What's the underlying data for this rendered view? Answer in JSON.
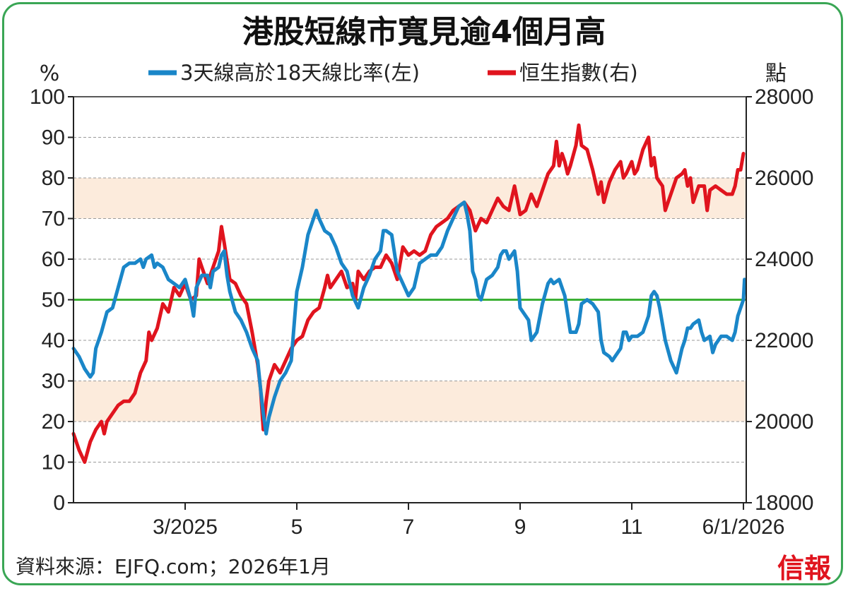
{
  "chart_data": {
    "type": "line",
    "title": "港股短線市寬見逾4個月高",
    "y_left_unit": "%",
    "y_right_unit": "點",
    "y_left_range": [
      0,
      100
    ],
    "y_right_range": [
      18000,
      28000
    ],
    "y_left_ticks": [
      "0",
      "10",
      "20",
      "30",
      "40",
      "50",
      "60",
      "70",
      "80",
      "90",
      "100"
    ],
    "y_right_ticks": [
      "18000",
      "20000",
      "22000",
      "24000",
      "26000",
      "28000"
    ],
    "x_ticks": [
      {
        "label": "3/2025",
        "t": 2.0
      },
      {
        "label": "5",
        "t": 4.0
      },
      {
        "label": "7",
        "t": 6.0
      },
      {
        "label": "9",
        "t": 8.0
      },
      {
        "label": "11",
        "t": 10.0
      },
      {
        "label": "6/1/2026",
        "t": 12.0
      }
    ],
    "x_range": [
      0.0,
      12.05
    ],
    "shaded_bands_left": [
      [
        20,
        30
      ],
      [
        70,
        80
      ]
    ],
    "reference_line_left": 50,
    "legend": [
      {
        "label": "3天線高於18天線比率(左)",
        "color": "#1a86c8"
      },
      {
        "label": "恒生指數(右)",
        "color": "#e0141e"
      }
    ],
    "series": [
      {
        "name": "3天線高於18天線比率(左)",
        "axis": "left",
        "color": "#1a86c8",
        "points": [
          [
            0.0,
            38
          ],
          [
            0.1,
            36
          ],
          [
            0.2,
            33
          ],
          [
            0.3,
            31
          ],
          [
            0.35,
            32
          ],
          [
            0.4,
            38
          ],
          [
            0.5,
            42
          ],
          [
            0.6,
            47
          ],
          [
            0.7,
            48
          ],
          [
            0.8,
            53
          ],
          [
            0.9,
            58
          ],
          [
            1.0,
            59
          ],
          [
            1.1,
            59
          ],
          [
            1.2,
            60
          ],
          [
            1.25,
            58
          ],
          [
            1.3,
            60
          ],
          [
            1.4,
            61
          ],
          [
            1.45,
            58
          ],
          [
            1.5,
            59
          ],
          [
            1.6,
            58
          ],
          [
            1.7,
            55
          ],
          [
            1.8,
            54
          ],
          [
            1.9,
            53
          ],
          [
            2.0,
            55
          ],
          [
            2.1,
            50
          ],
          [
            2.15,
            46
          ],
          [
            2.2,
            53
          ],
          [
            2.3,
            56
          ],
          [
            2.4,
            56
          ],
          [
            2.45,
            53
          ],
          [
            2.5,
            57
          ],
          [
            2.6,
            58
          ],
          [
            2.65,
            61
          ],
          [
            2.7,
            62
          ],
          [
            2.75,
            56
          ],
          [
            2.8,
            52
          ],
          [
            2.9,
            47
          ],
          [
            3.0,
            45
          ],
          [
            3.1,
            42
          ],
          [
            3.2,
            38
          ],
          [
            3.3,
            35
          ],
          [
            3.35,
            28
          ],
          [
            3.4,
            22
          ],
          [
            3.45,
            17
          ],
          [
            3.5,
            21
          ],
          [
            3.6,
            26
          ],
          [
            3.7,
            30
          ],
          [
            3.8,
            32
          ],
          [
            3.9,
            35
          ],
          [
            4.0,
            52
          ],
          [
            4.1,
            58
          ],
          [
            4.2,
            66
          ],
          [
            4.3,
            70
          ],
          [
            4.35,
            72
          ],
          [
            4.4,
            70
          ],
          [
            4.5,
            67
          ],
          [
            4.6,
            66
          ],
          [
            4.7,
            63
          ],
          [
            4.8,
            59
          ],
          [
            4.9,
            57
          ],
          [
            5.0,
            51
          ],
          [
            5.1,
            48
          ],
          [
            5.2,
            53
          ],
          [
            5.3,
            56
          ],
          [
            5.4,
            60
          ],
          [
            5.5,
            62
          ],
          [
            5.55,
            67
          ],
          [
            5.6,
            67
          ],
          [
            5.7,
            66
          ],
          [
            5.8,
            57
          ],
          [
            5.9,
            54
          ],
          [
            6.0,
            51
          ],
          [
            6.1,
            53
          ],
          [
            6.2,
            59
          ],
          [
            6.3,
            60
          ],
          [
            6.4,
            61
          ],
          [
            6.5,
            61
          ],
          [
            6.6,
            63
          ],
          [
            6.7,
            67
          ],
          [
            6.8,
            70
          ],
          [
            6.9,
            73
          ],
          [
            7.0,
            74
          ],
          [
            7.05,
            71
          ],
          [
            7.1,
            67
          ],
          [
            7.15,
            57
          ],
          [
            7.2,
            55
          ],
          [
            7.25,
            51
          ],
          [
            7.3,
            50
          ],
          [
            7.4,
            55
          ],
          [
            7.5,
            56
          ],
          [
            7.6,
            58
          ],
          [
            7.65,
            61
          ],
          [
            7.7,
            62
          ],
          [
            7.75,
            62
          ],
          [
            7.8,
            60
          ],
          [
            7.9,
            62
          ],
          [
            7.95,
            57
          ],
          [
            8.0,
            48
          ],
          [
            8.1,
            46
          ],
          [
            8.15,
            45
          ],
          [
            8.2,
            40
          ],
          [
            8.3,
            42
          ],
          [
            8.4,
            49
          ],
          [
            8.5,
            54
          ],
          [
            8.55,
            55
          ],
          [
            8.6,
            54
          ],
          [
            8.7,
            55
          ],
          [
            8.8,
            51
          ],
          [
            8.9,
            42
          ],
          [
            9.0,
            42
          ],
          [
            9.05,
            44
          ],
          [
            9.1,
            49
          ],
          [
            9.2,
            50
          ],
          [
            9.3,
            49
          ],
          [
            9.4,
            47
          ],
          [
            9.45,
            40
          ],
          [
            9.5,
            37
          ],
          [
            9.6,
            36
          ],
          [
            9.65,
            35
          ],
          [
            9.7,
            36
          ],
          [
            9.8,
            38
          ],
          [
            9.85,
            42
          ],
          [
            9.9,
            42
          ],
          [
            9.95,
            40
          ],
          [
            10.0,
            41
          ],
          [
            10.1,
            41
          ],
          [
            10.2,
            42
          ],
          [
            10.3,
            46
          ],
          [
            10.35,
            51
          ],
          [
            10.4,
            52
          ],
          [
            10.45,
            51
          ],
          [
            10.5,
            48
          ],
          [
            10.6,
            40
          ],
          [
            10.7,
            35
          ],
          [
            10.8,
            32
          ],
          [
            10.9,
            38
          ],
          [
            10.95,
            40
          ],
          [
            11.0,
            43
          ],
          [
            11.05,
            43
          ],
          [
            11.1,
            44
          ],
          [
            11.2,
            45
          ],
          [
            11.25,
            42
          ],
          [
            11.3,
            40
          ],
          [
            11.4,
            41
          ],
          [
            11.45,
            37
          ],
          [
            11.5,
            39
          ],
          [
            11.6,
            41
          ],
          [
            11.7,
            41
          ],
          [
            11.8,
            40
          ],
          [
            11.85,
            42
          ],
          [
            11.9,
            46
          ],
          [
            12.0,
            50
          ],
          [
            12.02,
            55
          ]
        ]
      },
      {
        "name": "恒生指數(右)",
        "axis": "right",
        "color": "#e0141e",
        "points": [
          [
            0.0,
            19700
          ],
          [
            0.1,
            19300
          ],
          [
            0.2,
            19000
          ],
          [
            0.3,
            19500
          ],
          [
            0.4,
            19800
          ],
          [
            0.5,
            20000
          ],
          [
            0.55,
            19700
          ],
          [
            0.6,
            20000
          ],
          [
            0.7,
            20200
          ],
          [
            0.8,
            20400
          ],
          [
            0.9,
            20500
          ],
          [
            1.0,
            20500
          ],
          [
            1.1,
            20700
          ],
          [
            1.2,
            21200
          ],
          [
            1.3,
            21500
          ],
          [
            1.35,
            22200
          ],
          [
            1.4,
            22000
          ],
          [
            1.5,
            22300
          ],
          [
            1.6,
            22900
          ],
          [
            1.7,
            22700
          ],
          [
            1.75,
            23000
          ],
          [
            1.8,
            23300
          ],
          [
            1.9,
            23100
          ],
          [
            2.0,
            23400
          ],
          [
            2.1,
            23000
          ],
          [
            2.2,
            23100
          ],
          [
            2.25,
            24000
          ],
          [
            2.3,
            23800
          ],
          [
            2.4,
            23400
          ],
          [
            2.5,
            23800
          ],
          [
            2.6,
            24200
          ],
          [
            2.65,
            24800
          ],
          [
            2.7,
            24400
          ],
          [
            2.8,
            23500
          ],
          [
            2.9,
            23400
          ],
          [
            3.0,
            23100
          ],
          [
            3.1,
            22900
          ],
          [
            3.2,
            22200
          ],
          [
            3.3,
            21400
          ],
          [
            3.35,
            20800
          ],
          [
            3.4,
            19800
          ],
          [
            3.45,
            20500
          ],
          [
            3.5,
            21000
          ],
          [
            3.6,
            21400
          ],
          [
            3.7,
            21200
          ],
          [
            3.8,
            21500
          ],
          [
            3.9,
            21800
          ],
          [
            4.0,
            22000
          ],
          [
            4.1,
            22100
          ],
          [
            4.2,
            22500
          ],
          [
            4.3,
            22700
          ],
          [
            4.4,
            22800
          ],
          [
            4.5,
            23300
          ],
          [
            4.55,
            23600
          ],
          [
            4.6,
            23300
          ],
          [
            4.7,
            23500
          ],
          [
            4.8,
            23700
          ],
          [
            4.9,
            23300
          ],
          [
            5.0,
            23400
          ],
          [
            5.05,
            23000
          ],
          [
            5.1,
            23700
          ],
          [
            5.2,
            23500
          ],
          [
            5.3,
            23700
          ],
          [
            5.4,
            23800
          ],
          [
            5.5,
            23800
          ],
          [
            5.6,
            24100
          ],
          [
            5.7,
            23900
          ],
          [
            5.8,
            23500
          ],
          [
            5.9,
            24300
          ],
          [
            6.0,
            24100
          ],
          [
            6.1,
            24200
          ],
          [
            6.2,
            24100
          ],
          [
            6.3,
            24200
          ],
          [
            6.4,
            24600
          ],
          [
            6.5,
            24800
          ],
          [
            6.6,
            24900
          ],
          [
            6.7,
            25000
          ],
          [
            6.8,
            25200
          ],
          [
            6.9,
            25300
          ],
          [
            7.0,
            25400
          ],
          [
            7.1,
            25200
          ],
          [
            7.2,
            24700
          ],
          [
            7.3,
            25000
          ],
          [
            7.4,
            24900
          ],
          [
            7.5,
            25200
          ],
          [
            7.6,
            25500
          ],
          [
            7.7,
            25300
          ],
          [
            7.8,
            25200
          ],
          [
            7.9,
            25800
          ],
          [
            8.0,
            25100
          ],
          [
            8.1,
            25200
          ],
          [
            8.2,
            25600
          ],
          [
            8.3,
            25300
          ],
          [
            8.4,
            25700
          ],
          [
            8.5,
            26100
          ],
          [
            8.6,
            26300
          ],
          [
            8.65,
            26900
          ],
          [
            8.7,
            26300
          ],
          [
            8.75,
            26600
          ],
          [
            8.8,
            26400
          ],
          [
            8.85,
            26100
          ],
          [
            8.9,
            26300
          ],
          [
            9.0,
            26800
          ],
          [
            9.05,
            27300
          ],
          [
            9.1,
            26800
          ],
          [
            9.2,
            26700
          ],
          [
            9.3,
            26200
          ],
          [
            9.4,
            25600
          ],
          [
            9.45,
            25900
          ],
          [
            9.5,
            25400
          ],
          [
            9.6,
            25900
          ],
          [
            9.7,
            26200
          ],
          [
            9.8,
            26400
          ],
          [
            9.85,
            26000
          ],
          [
            9.9,
            26100
          ],
          [
            10.0,
            26400
          ],
          [
            10.05,
            26100
          ],
          [
            10.1,
            26200
          ],
          [
            10.2,
            26700
          ],
          [
            10.3,
            27000
          ],
          [
            10.35,
            26300
          ],
          [
            10.4,
            26500
          ],
          [
            10.45,
            26000
          ],
          [
            10.5,
            25900
          ],
          [
            10.55,
            25800
          ],
          [
            10.6,
            25200
          ],
          [
            10.7,
            25600
          ],
          [
            10.8,
            26000
          ],
          [
            10.9,
            26100
          ],
          [
            10.95,
            26200
          ],
          [
            11.0,
            25800
          ],
          [
            11.05,
            26000
          ],
          [
            11.1,
            25400
          ],
          [
            11.2,
            25800
          ],
          [
            11.3,
            25800
          ],
          [
            11.35,
            25200
          ],
          [
            11.4,
            25700
          ],
          [
            11.5,
            25800
          ],
          [
            11.6,
            25700
          ],
          [
            11.7,
            25600
          ],
          [
            11.8,
            25600
          ],
          [
            11.85,
            25800
          ],
          [
            11.9,
            26200
          ],
          [
            11.95,
            26200
          ],
          [
            12.0,
            26600
          ]
        ]
      }
    ]
  },
  "source_text": "資料來源：EJFQ.com；2026年1月",
  "brand_text": "信報"
}
